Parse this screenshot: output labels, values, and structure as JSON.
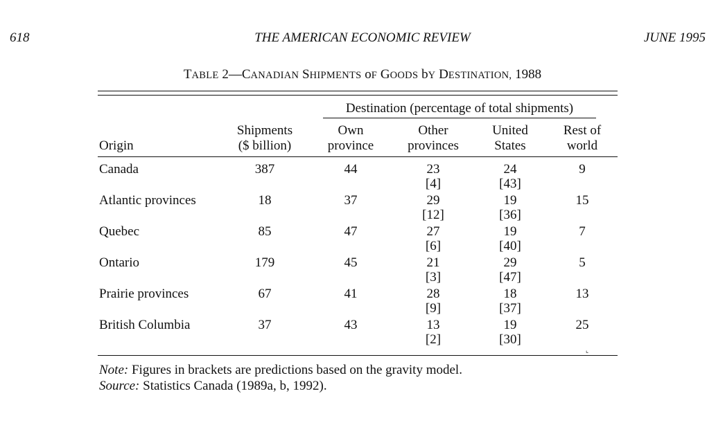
{
  "header": {
    "page_number": "618",
    "journal": "THE AMERICAN ECONOMIC REVIEW",
    "issue": "JUNE 1995"
  },
  "caption": {
    "label": "Table 2",
    "dash": "—",
    "title": "Canadian Shipments of Goods by Destination, 1988"
  },
  "table": {
    "spanner": "Destination (percentage of total shipments)",
    "columns": {
      "origin": "Origin",
      "shipments": [
        "Shipments",
        "($ billion)"
      ],
      "own": [
        "Own",
        "province"
      ],
      "other": [
        "Other",
        "provinces"
      ],
      "us": [
        "United",
        "States"
      ],
      "rest": [
        "Rest of",
        "world"
      ]
    },
    "rows": [
      {
        "origin": "Canada",
        "shipments": "387",
        "own": "44",
        "other": "23",
        "other_pred": "[4]",
        "us": "24",
        "us_pred": "[43]",
        "rest": "9"
      },
      {
        "origin": "Atlantic provinces",
        "shipments": "18",
        "own": "37",
        "other": "29",
        "other_pred": "[12]",
        "us": "19",
        "us_pred": "[36]",
        "rest": "15"
      },
      {
        "origin": "Quebec",
        "shipments": "85",
        "own": "47",
        "other": "27",
        "other_pred": "[6]",
        "us": "19",
        "us_pred": "[40]",
        "rest": "7"
      },
      {
        "origin": "Ontario",
        "shipments": "179",
        "own": "45",
        "other": "21",
        "other_pred": "[3]",
        "us": "29",
        "us_pred": "[47]",
        "rest": "5"
      },
      {
        "origin": "Prairie provinces",
        "shipments": "67",
        "own": "41",
        "other": "28",
        "other_pred": "[9]",
        "us": "18",
        "us_pred": "[37]",
        "rest": "13"
      },
      {
        "origin": "British Columbia",
        "shipments": "37",
        "own": "43",
        "other": "13",
        "other_pred": "[2]",
        "us": "19",
        "us_pred": "[30]",
        "rest": "25"
      }
    ]
  },
  "notes": {
    "note_label": "Note:",
    "note_text": "Figures in brackets are predictions based on the gravity model.",
    "source_label": "Source:",
    "source_text": "Statistics Canada (1989a, b, 1992)."
  }
}
